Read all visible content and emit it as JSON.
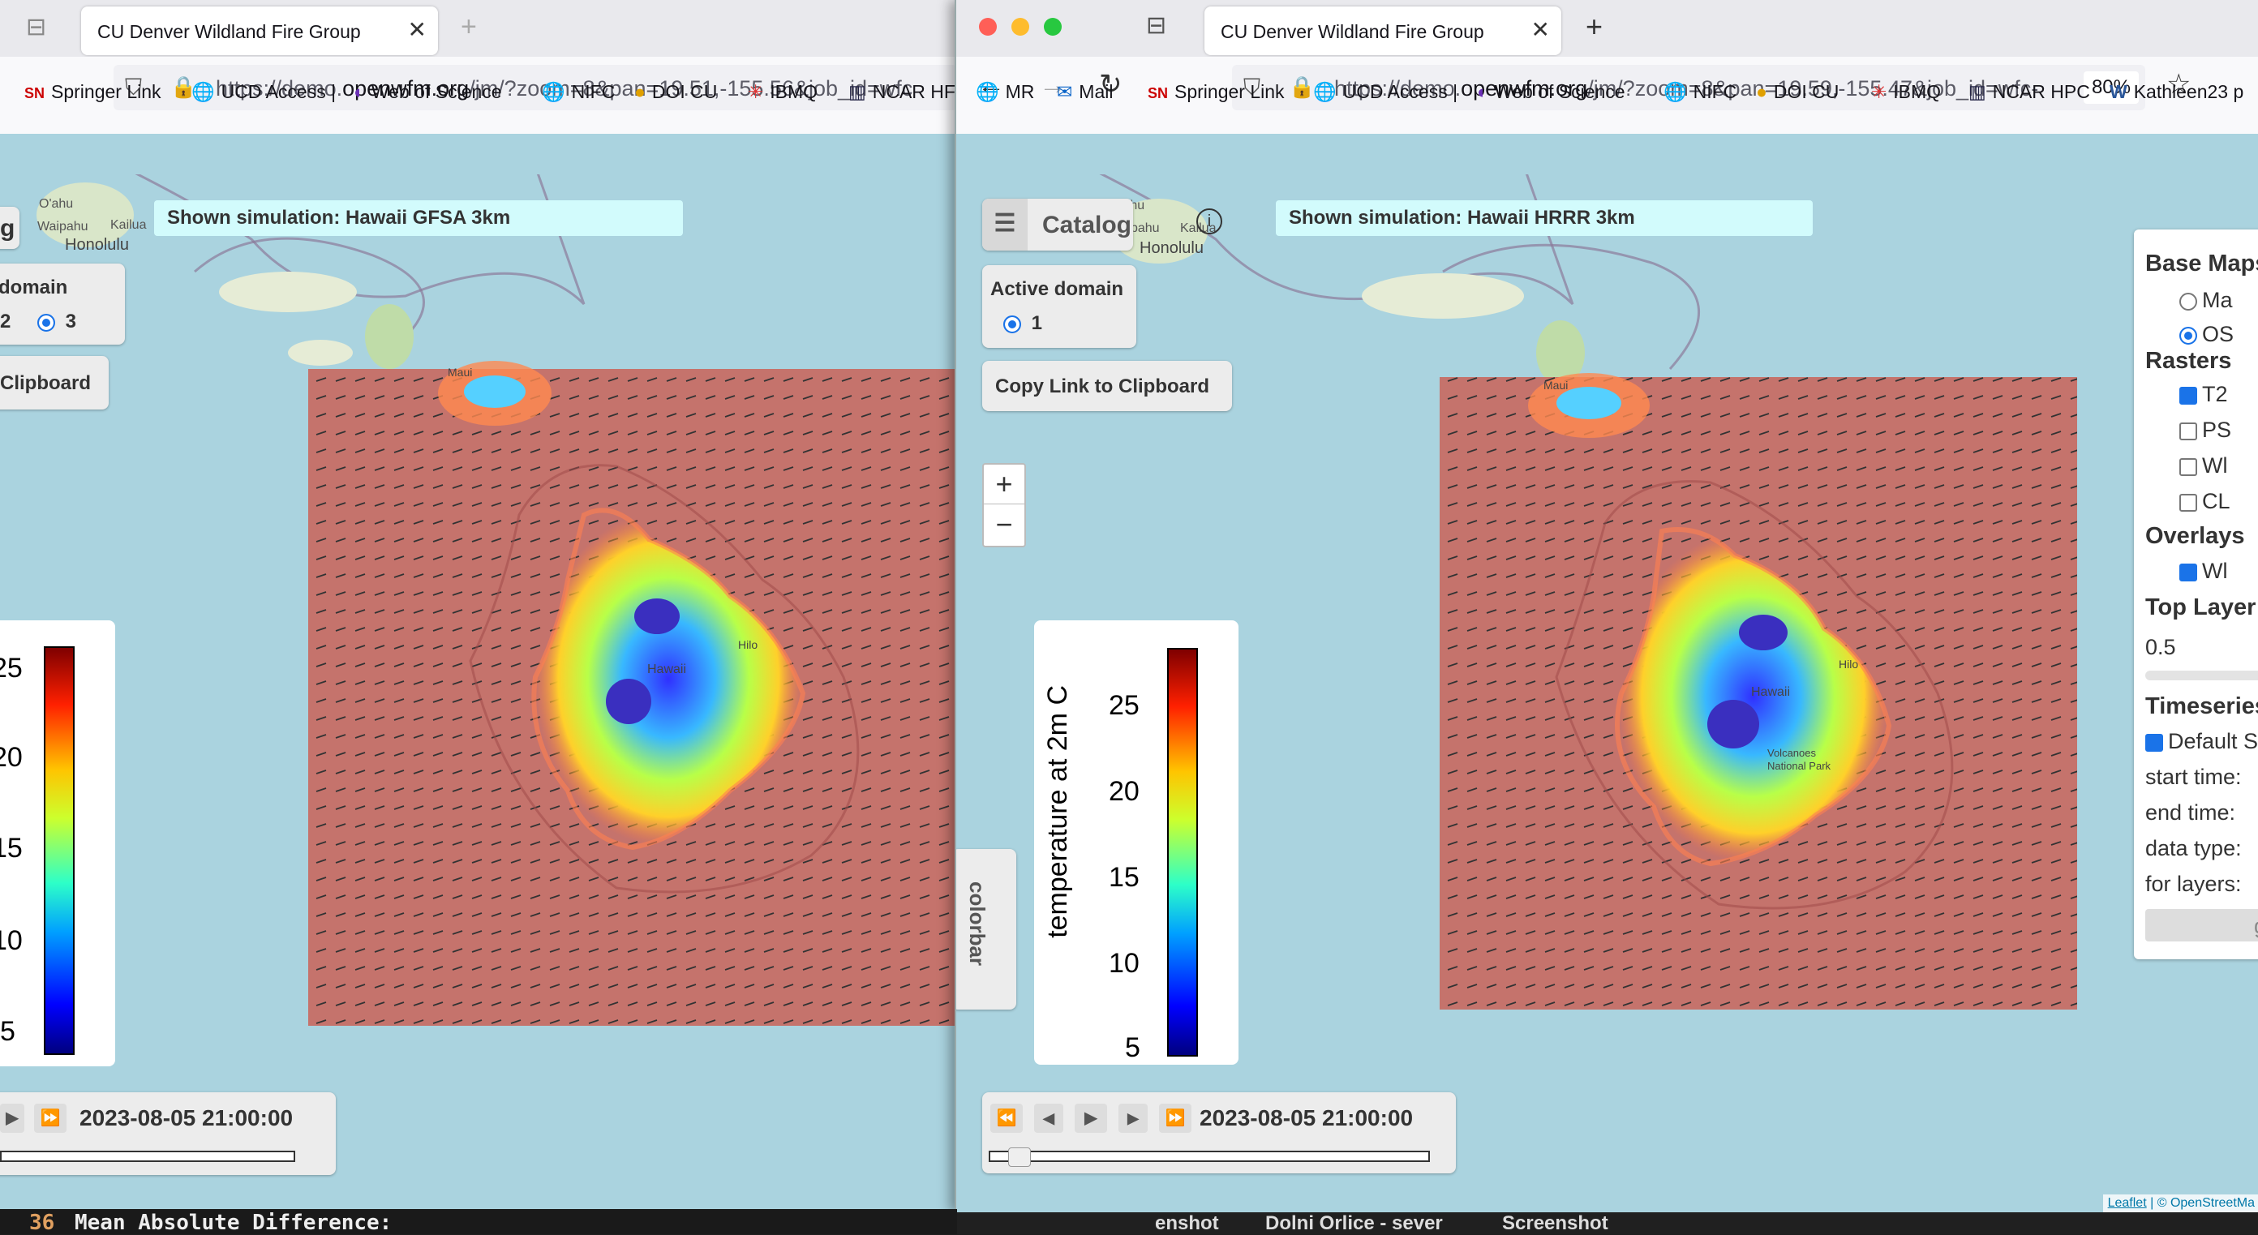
{
  "left_window": {
    "tab_title": "CU Denver Wildland Fire Group",
    "url_prefix": "https://demo.",
    "url_domain": "openwfm.org",
    "url_rest": "/jm/?zoom=8&pan=19.51,-155.56&job_id=wfc",
    "bookmarks": [
      "Springer Link",
      "UCD Access |",
      "Web of Science",
      "NIFC",
      "DOI CU",
      "IBMQ",
      "NCAR HF"
    ],
    "simulation_banner": "Shown simulation: Hawaii GFSA 3km",
    "active_domain_label": "domain",
    "domain_options": [
      "2",
      "3"
    ],
    "copy_link_label": "Clipboard",
    "colorbar_ticks": [
      "25",
      "20",
      "15",
      "10",
      "5"
    ],
    "timestamp": "2023-08-05 21:00:00",
    "terminal_line_number": "36",
    "terminal_text": "Mean Absolute Difference:",
    "map_labels": [
      "O'ahu",
      "Waipahu",
      "Kailua",
      "Honolulu",
      "Maui",
      "Hilo",
      "Hawaii"
    ]
  },
  "right_window": {
    "tab_title": "CU Denver Wildland Fire Group",
    "url_prefix": "https://demo.",
    "url_domain": "openwfm.org",
    "url_rest": "/jm/?zoom=8&pan=19.59,-155.47&job_id=wfc-",
    "zoom_level": "80%",
    "bookmarks": [
      "MR",
      "Mail",
      "Springer Link",
      "UCD Access |",
      "Web of Science",
      "NIFC",
      "DOI CU",
      "IBMQ",
      "NCAR HPC",
      "Kathleen23 p"
    ],
    "catalog_label": "Catalog",
    "simulation_banner": "Shown simulation: Hawaii HRRR 3km",
    "active_domain_label": "Active domain",
    "domain_options": [
      "1"
    ],
    "copy_link_label": "Copy Link to Clipboard",
    "zoom_in": "+",
    "zoom_out": "−",
    "colorbar_tab": "colorbar",
    "colorbar_title": "temperature at 2m C",
    "colorbar_ticks": [
      "25",
      "20",
      "15",
      "10",
      "5"
    ],
    "timestamp": "2023-08-05 21:00:00",
    "layers_panel": {
      "base_maps_title": "Base Maps",
      "base_maps": [
        "Ma",
        "OS"
      ],
      "rasters_title": "Rasters",
      "rasters": [
        "T2",
        "PS",
        "Wl",
        "CL"
      ],
      "overlays_title": "Overlays",
      "overlays": [
        "Wl"
      ],
      "top_layer_title": "Top Layer",
      "top_layer_value": "0.5",
      "timeseries_title": "Timeseries",
      "default_label": "Default S",
      "start_time": "start time:",
      "end_time": "end time:",
      "data_type": "data type:",
      "for_layers": "for layers:",
      "go_btn": "g"
    },
    "attribution_leaflet": "Leaflet",
    "attribution_osm": "| © OpenStreetMa",
    "map_labels": [
      "O'ahu",
      "Waipahu",
      "Kailua",
      "Honolulu",
      "Maui",
      "Hilo",
      "Hawaii",
      "Volcanoes National Park"
    ]
  },
  "taskbar": [
    "enshot",
    "Dolni Orlice - sever",
    "Screenshot"
  ]
}
